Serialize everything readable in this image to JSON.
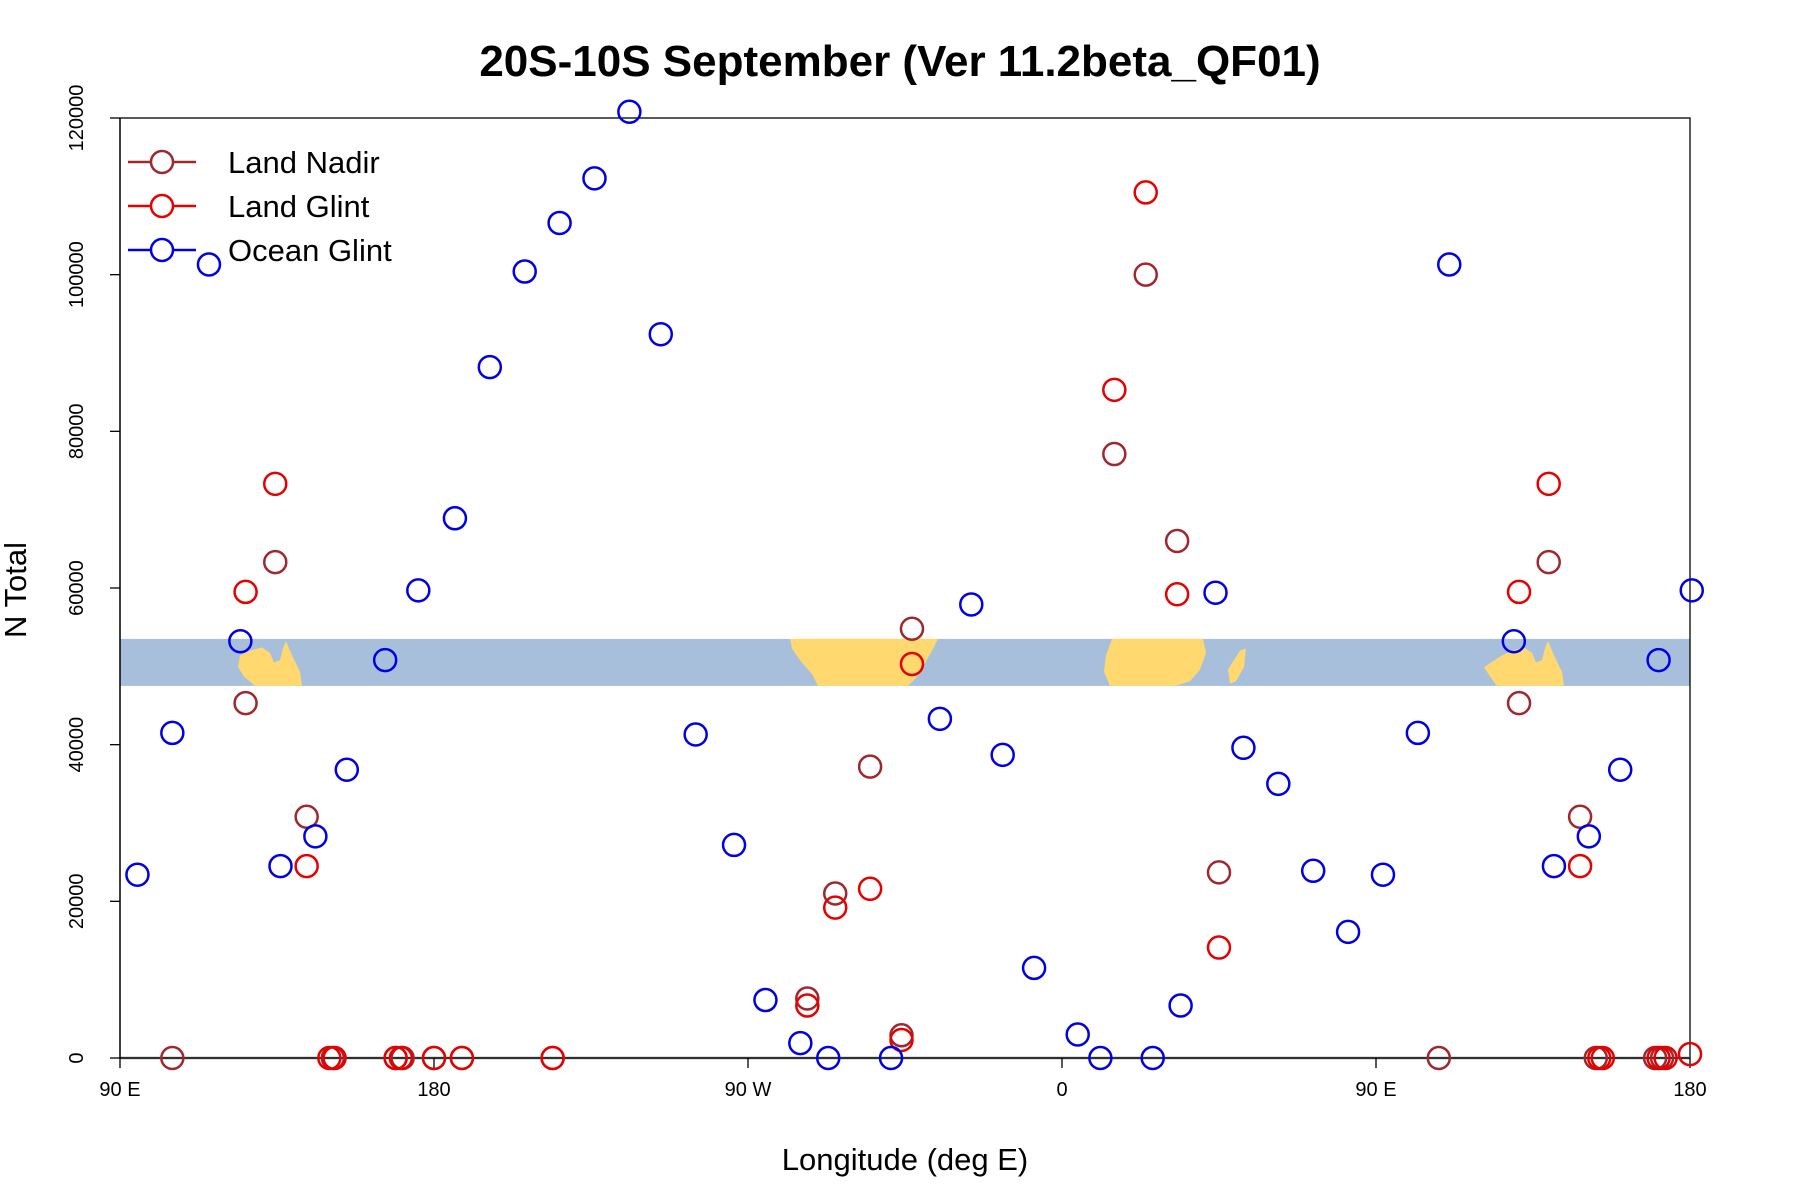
{
  "chart_data": {
    "type": "scatter",
    "title": "20S-10S September (Ver 11.2beta_QF01)",
    "xlabel": "Longitude (deg E)",
    "ylabel": "N Total",
    "xlim": [
      90,
      540
    ],
    "ylim": [
      0,
      120000
    ],
    "x_ticks": [
      {
        "value": 90,
        "label": "90 E"
      },
      {
        "value": 180,
        "label": "180"
      },
      {
        "value": 270,
        "label": "90 W"
      },
      {
        "value": 360,
        "label": "0"
      },
      {
        "value": 450,
        "label": "90 E"
      },
      {
        "value": 540,
        "label": "180"
      }
    ],
    "y_ticks": [
      {
        "value": 0,
        "label": "0"
      },
      {
        "value": 20000,
        "label": "20000"
      },
      {
        "value": 40000,
        "label": "40000"
      },
      {
        "value": 60000,
        "label": "60000"
      },
      {
        "value": 80000,
        "label": "80000"
      },
      {
        "value": 100000,
        "label": "100000"
      },
      {
        "value": 120000,
        "label": "120000"
      }
    ],
    "grid": false,
    "legend_position": "top-left",
    "map_strip": {
      "y_range": [
        47500,
        53500
      ],
      "ocean_color": "#a8bfdc",
      "land_color": "#ffd970"
    },
    "series": [
      {
        "name": "Land Nadir",
        "color": "#a0282d",
        "points": [
          {
            "x": 105,
            "y": 0
          },
          {
            "x": 126,
            "y": 45300
          },
          {
            "x": 134.5,
            "y": 63300
          },
          {
            "x": 143.5,
            "y": 30800
          },
          {
            "x": 151,
            "y": 0
          },
          {
            "x": 169,
            "y": 0
          },
          {
            "x": 171,
            "y": 0
          },
          {
            "x": 180,
            "y": 0
          },
          {
            "x": 188,
            "y": 0
          },
          {
            "x": 214,
            "y": 0
          },
          {
            "x": 287,
            "y": 7600
          },
          {
            "x": 295,
            "y": 21000
          },
          {
            "x": 305,
            "y": 37200
          },
          {
            "x": 314,
            "y": 2900
          },
          {
            "x": 317,
            "y": 54800
          },
          {
            "x": 375,
            "y": 77100
          },
          {
            "x": 384,
            "y": 100000
          },
          {
            "x": 393,
            "y": 66000
          },
          {
            "x": 405,
            "y": 23700
          },
          {
            "x": 468,
            "y": 0
          },
          {
            "x": 491,
            "y": 45300
          },
          {
            "x": 499.5,
            "y": 63300
          },
          {
            "x": 508.5,
            "y": 30800
          },
          {
            "x": 513,
            "y": 0
          },
          {
            "x": 530,
            "y": 0
          },
          {
            "x": 532,
            "y": 0
          }
        ]
      },
      {
        "name": "Land Glint",
        "color": "#e60000",
        "points": [
          {
            "x": 126,
            "y": 59500
          },
          {
            "x": 134.5,
            "y": 73300
          },
          {
            "x": 143.5,
            "y": 24500
          },
          {
            "x": 150,
            "y": 0
          },
          {
            "x": 151.5,
            "y": 0
          },
          {
            "x": 169,
            "y": 0
          },
          {
            "x": 170.5,
            "y": 0
          },
          {
            "x": 180,
            "y": 0
          },
          {
            "x": 188,
            "y": 0
          },
          {
            "x": 214,
            "y": 0
          },
          {
            "x": 287,
            "y": 6700
          },
          {
            "x": 295,
            "y": 19200
          },
          {
            "x": 305,
            "y": 21600
          },
          {
            "x": 314,
            "y": 2300
          },
          {
            "x": 317,
            "y": 50300
          },
          {
            "x": 375,
            "y": 85300
          },
          {
            "x": 384,
            "y": 110500
          },
          {
            "x": 393,
            "y": 59200
          },
          {
            "x": 405,
            "y": 14100
          },
          {
            "x": 491,
            "y": 59500
          },
          {
            "x": 499.5,
            "y": 73300
          },
          {
            "x": 508.5,
            "y": 24500
          },
          {
            "x": 514,
            "y": 0
          },
          {
            "x": 515,
            "y": 0
          },
          {
            "x": 531,
            "y": 0
          },
          {
            "x": 533,
            "y": 0
          },
          {
            "x": 540,
            "y": 500
          }
        ]
      },
      {
        "name": "Ocean Glint",
        "color": "#0000e6",
        "points": [
          {
            "x": 95,
            "y": 23400
          },
          {
            "x": 105,
            "y": 41500
          },
          {
            "x": 115.5,
            "y": 101300
          },
          {
            "x": 124.5,
            "y": 53200
          },
          {
            "x": 136,
            "y": 24500
          },
          {
            "x": 146,
            "y": 28300
          },
          {
            "x": 155,
            "y": 36800
          },
          {
            "x": 166,
            "y": 50800
          },
          {
            "x": 175.5,
            "y": 59700
          },
          {
            "x": 186,
            "y": 68900
          },
          {
            "x": 196,
            "y": 88200
          },
          {
            "x": 206,
            "y": 100400
          },
          {
            "x": 216,
            "y": 106600
          },
          {
            "x": 226,
            "y": 112300
          },
          {
            "x": 236,
            "y": 120800
          },
          {
            "x": 245,
            "y": 92400
          },
          {
            "x": 255,
            "y": 41300
          },
          {
            "x": 266,
            "y": 27200
          },
          {
            "x": 275,
            "y": 7400
          },
          {
            "x": 285,
            "y": 1900
          },
          {
            "x": 293,
            "y": 0
          },
          {
            "x": 311,
            "y": 0
          },
          {
            "x": 325,
            "y": 43300
          },
          {
            "x": 334,
            "y": 57900
          },
          {
            "x": 343,
            "y": 38700
          },
          {
            "x": 352,
            "y": 11500
          },
          {
            "x": 364.5,
            "y": 3000
          },
          {
            "x": 371,
            "y": 0
          },
          {
            "x": 386,
            "y": 0
          },
          {
            "x": 394,
            "y": 6700
          },
          {
            "x": 404,
            "y": 59400
          },
          {
            "x": 412,
            "y": 39600
          },
          {
            "x": 422,
            "y": 35000
          },
          {
            "x": 432,
            "y": 23900
          },
          {
            "x": 442,
            "y": 16100
          },
          {
            "x": 452,
            "y": 23400
          },
          {
            "x": 462,
            "y": 41500
          },
          {
            "x": 471,
            "y": 101300
          },
          {
            "x": 489.5,
            "y": 53200
          },
          {
            "x": 501,
            "y": 24500
          },
          {
            "x": 511,
            "y": 28300
          },
          {
            "x": 520,
            "y": 36800
          },
          {
            "x": 531,
            "y": 50800
          },
          {
            "x": 540.5,
            "y": 59700
          }
        ]
      }
    ]
  }
}
